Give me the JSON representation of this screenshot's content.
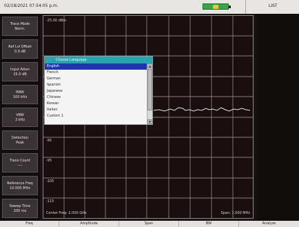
{
  "status_bar": {
    "datetime": "02/18/2021 07:54:05 p.m.",
    "mode_label": "LIST",
    "battery_color": "#3aa64a"
  },
  "sidebar": {
    "items": [
      {
        "line1": "Trace Mode",
        "line2": "Norm."
      },
      {
        "line1": "Ref Lvl Offset",
        "line2": "0.0 dB"
      },
      {
        "line1": "Input Atten",
        "line2": "25.0 dB"
      },
      {
        "line1": "RBW",
        "line2": "100 kHz"
      },
      {
        "line1": "VBW",
        "line2": "3 kHz"
      },
      {
        "line1": "Detection",
        "line2": "Peak"
      },
      {
        "line1": "Trace Count",
        "line2": "----"
      },
      {
        "line1": "Reference Freq",
        "line2": "10.000 MHz"
      },
      {
        "line1": "Sweep Time",
        "line2": "200 ms"
      }
    ]
  },
  "plot": {
    "ref_level": "-25.00 dBm",
    "y_labels": [
      "-95",
      "-95",
      "-105",
      "-115"
    ],
    "center_freq": "Center Freq: 2.000 GHz",
    "span": "Span: 1.000 MHz",
    "trace_color": "#e6e6e6",
    "grid_color": "#a8a2a2"
  },
  "dialog": {
    "title": "Choose Language",
    "items": [
      "English",
      "French",
      "German",
      "Spanish",
      "Japanese",
      "Chinese",
      "Korean",
      "Italian",
      "Custom 1"
    ],
    "selected_index": 0,
    "accent_color": "#2aa3b0",
    "selected_color": "#1f36a8"
  },
  "softkeys": [
    "Freq",
    "Amplitude",
    "Span",
    "BW",
    "Analyze"
  ]
}
